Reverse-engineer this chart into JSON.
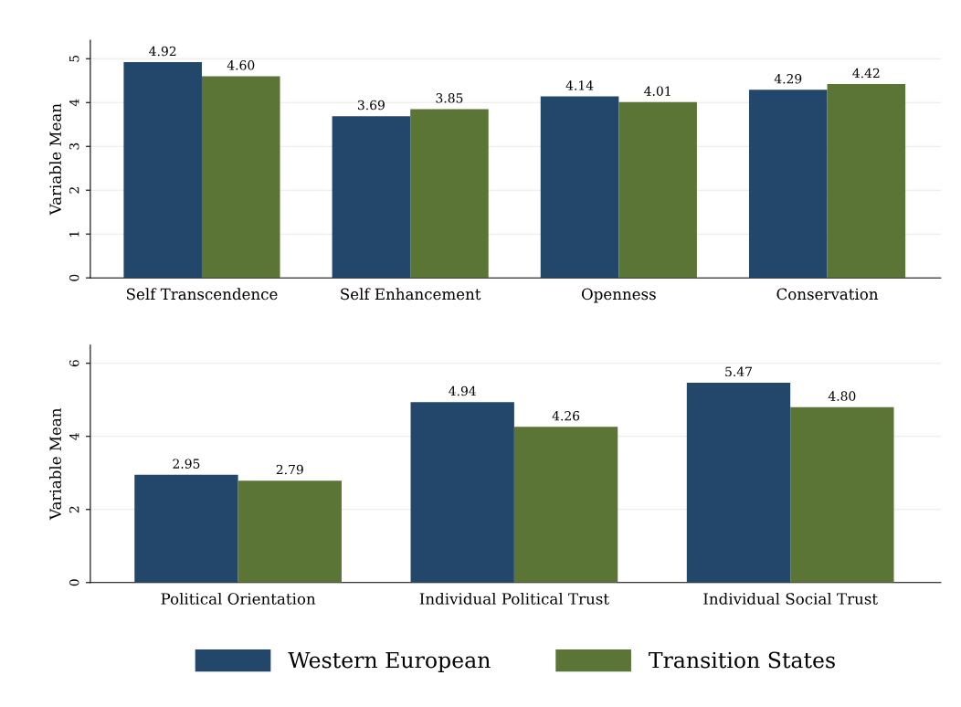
{
  "chart_data": [
    {
      "type": "bar",
      "ylabel": "Variable Mean",
      "categories": [
        "Self Transcendence",
        "Self Enhancement",
        "Openness",
        "Conservation"
      ],
      "series": [
        {
          "color": "#23466b",
          "values": [
            4.92,
            3.69,
            4.14,
            4.29
          ],
          "value_labels": [
            "4.92",
            "3.69",
            "4.14",
            "4.29"
          ]
        },
        {
          "color": "#5b7537",
          "values": [
            4.6,
            3.85,
            4.01,
            4.42
          ],
          "value_labels": [
            "4.60",
            "3.85",
            "4.01",
            "4.42"
          ]
        }
      ],
      "ylim": [
        0,
        5.42
      ],
      "yticks": [
        0,
        1,
        2,
        3,
        4,
        5
      ],
      "grid": "y"
    },
    {
      "type": "bar",
      "ylabel": "Variable Mean",
      "categories": [
        "Political Orientation",
        "Individual Political Trust",
        "Individual Social Trust"
      ],
      "series": [
        {
          "name": "Western European",
          "color": "#23466b",
          "values": [
            2.95,
            4.94,
            5.47
          ],
          "value_labels": [
            "2.95",
            "4.94",
            "5.47"
          ]
        },
        {
          "name": "Transition States",
          "color": "#5b7537",
          "values": [
            2.79,
            4.26,
            4.8
          ],
          "value_labels": [
            "2.79",
            "4.26",
            "4.80"
          ]
        }
      ],
      "ylim": [
        0,
        6.5
      ],
      "yticks": [
        0,
        2,
        4,
        6
      ],
      "grid": "y",
      "legend": "bottom"
    }
  ]
}
